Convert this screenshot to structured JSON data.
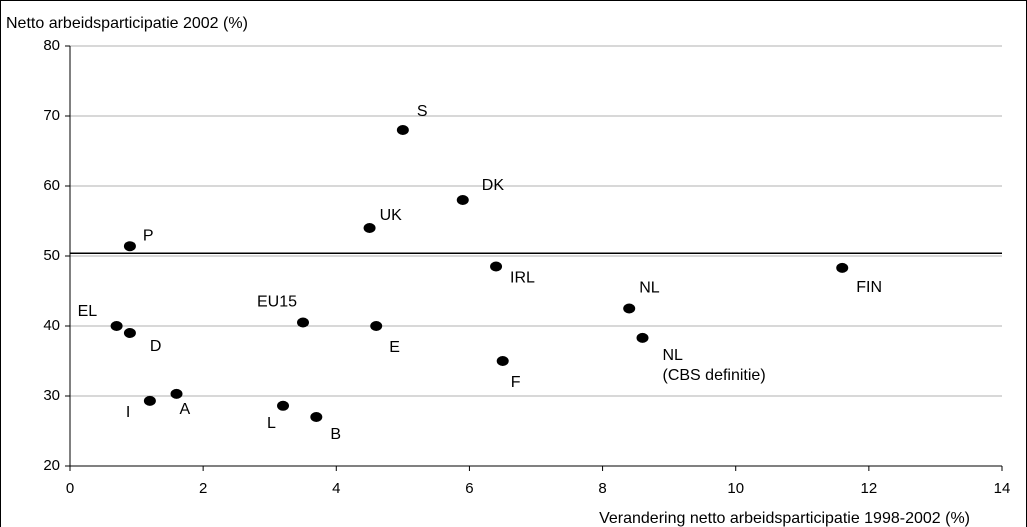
{
  "chart_data": {
    "type": "scatter",
    "y_label": "Netto arbeidsparticipatie 2002 (%)",
    "x_label": "Verandering netto arbeidsparticipatie 1998-2002 (%)",
    "xlim": [
      0,
      14
    ],
    "xticks": [
      0,
      2,
      4,
      6,
      8,
      10,
      12,
      14
    ],
    "ylim": [
      20,
      80
    ],
    "yticks": [
      20,
      30,
      40,
      50,
      60,
      70,
      80
    ],
    "grid": true,
    "reference_line": 50.4,
    "series": [
      {
        "color": "#000000",
        "labels": [
          "S",
          "DK",
          "UK",
          "P",
          "IRL",
          "FIN",
          "NL",
          [
            "NL",
            "(CBS definitie)"
          ],
          "EU15",
          "E",
          "EL",
          "D",
          "F",
          "A",
          "I",
          "L",
          "B"
        ],
        "x": [
          5.0,
          5.9,
          4.5,
          0.9,
          6.4,
          11.6,
          8.4,
          8.6,
          3.5,
          4.6,
          0.7,
          0.9,
          6.5,
          1.6,
          1.2,
          3.2,
          3.7
        ],
        "values": [
          68,
          58,
          54,
          51.4,
          48.5,
          48.3,
          42.5,
          38.3,
          40.5,
          40,
          40,
          39,
          35,
          30.3,
          29.3,
          28.6,
          27
        ]
      }
    ]
  }
}
